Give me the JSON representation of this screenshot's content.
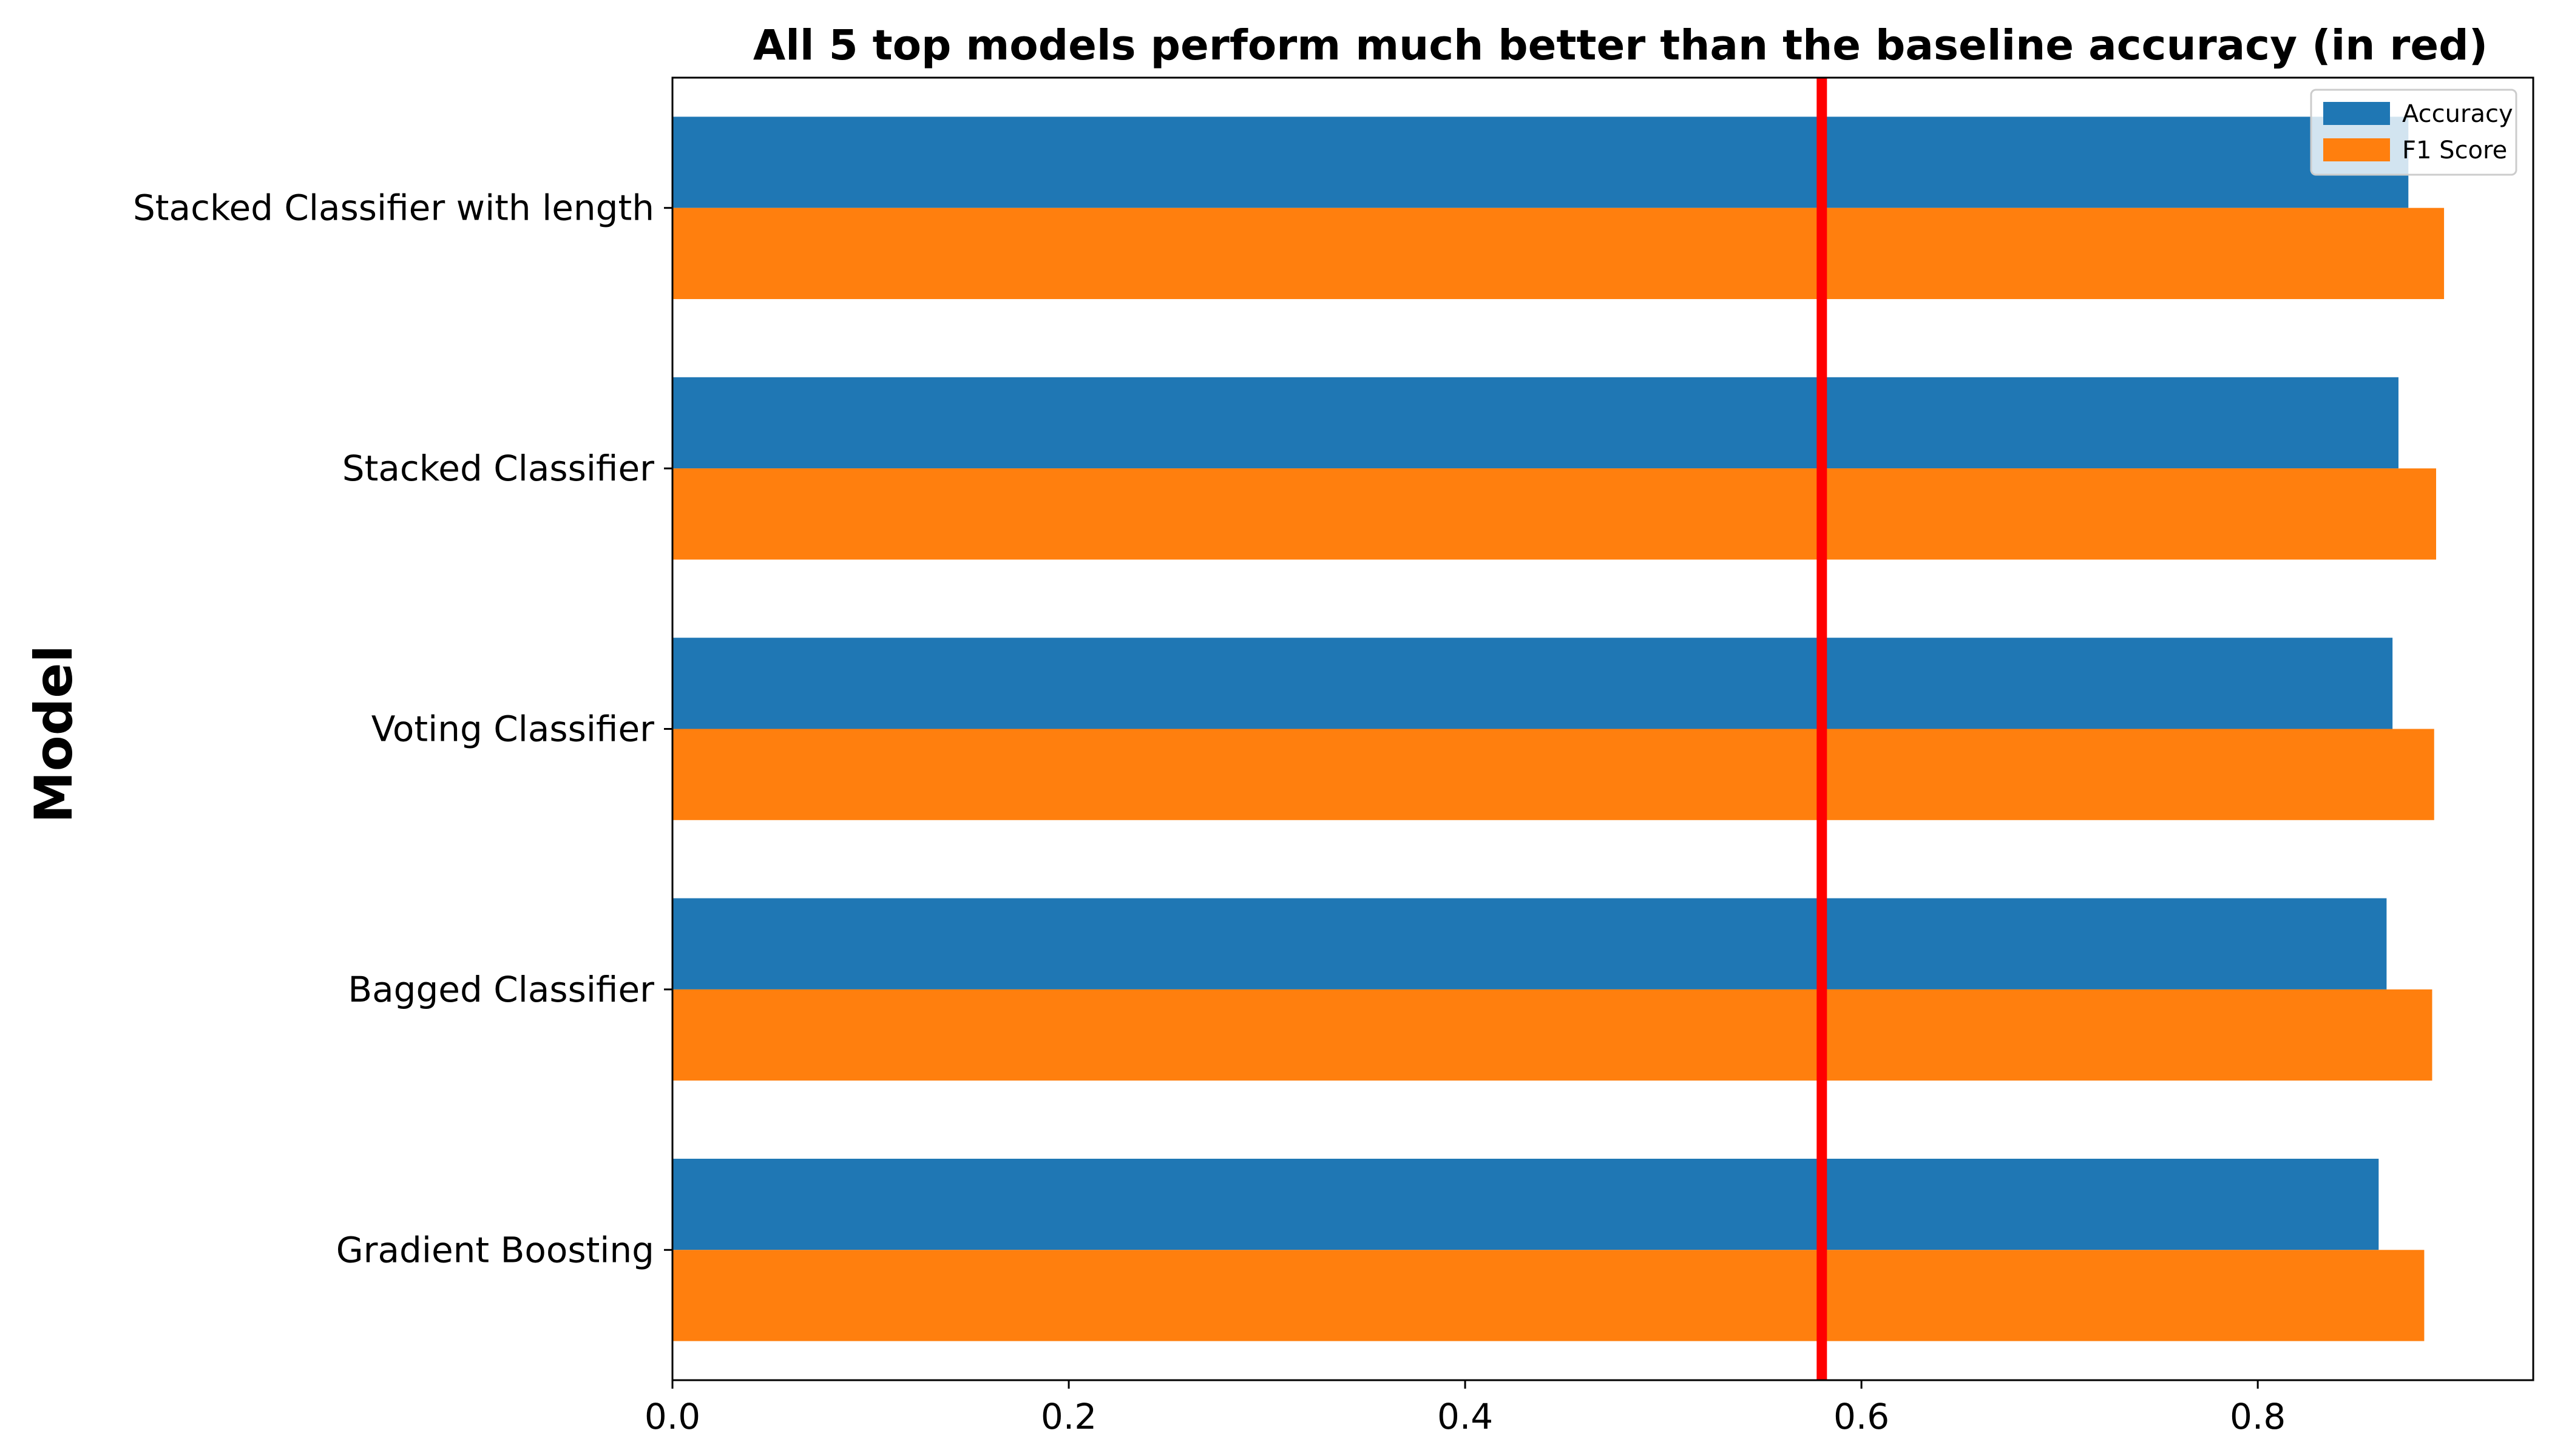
{
  "chart_data": {
    "type": "bar",
    "orientation": "horizontal",
    "title": "All 5 top models perform much better than the baseline accuracy (in red)",
    "xlabel": "",
    "ylabel": "Model",
    "categories": [
      "Stacked Classifier with length",
      "Stacked Classifier",
      "Voting Classifier",
      "Bagged Classifier",
      "Gradient Boosting"
    ],
    "series": [
      {
        "name": "Accuracy",
        "color": "#1f77b4",
        "values": [
          0.876,
          0.871,
          0.868,
          0.865,
          0.861
        ]
      },
      {
        "name": "F1 Score",
        "color": "#ff7f0e",
        "values": [
          0.894,
          0.89,
          0.889,
          0.888,
          0.884
        ]
      }
    ],
    "baseline": {
      "value": 0.58,
      "color": "#ff0000"
    },
    "xlim": [
      0,
      0.939
    ],
    "xticks": [
      "0.0",
      "0.2",
      "0.4",
      "0.6",
      "0.8"
    ],
    "xtick_values": [
      0.0,
      0.2,
      0.4,
      0.6,
      0.8
    ],
    "grid": false,
    "legend_position": "top-right"
  }
}
